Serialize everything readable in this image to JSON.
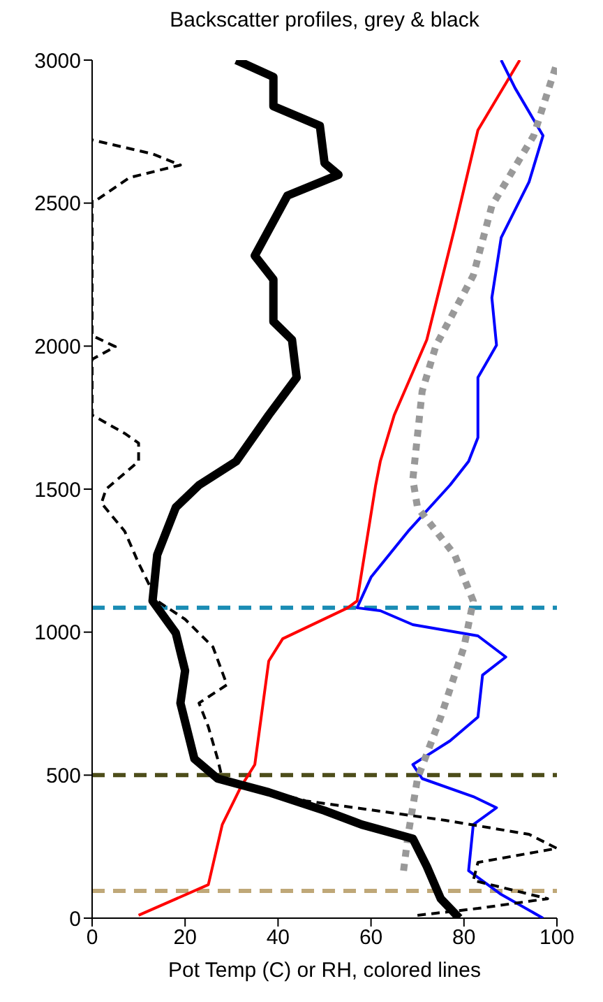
{
  "chart_data": {
    "type": "line",
    "title": "Backscatter profiles, grey & black",
    "xlabel": "Pot Temp (C) or RH, colored lines",
    "xlim": [
      0,
      100
    ],
    "xticks": [
      0,
      20,
      40,
      60,
      80,
      100
    ],
    "ylim": [
      0,
      3000
    ],
    "yticks": [
      0,
      500,
      1000,
      1500,
      2000,
      2500,
      3000
    ],
    "grid": false,
    "legend": false,
    "marker": "none",
    "series": [
      {
        "color": "#ff0000",
        "line_style": "solid",
        "x": [
          10,
          25,
          28,
          32,
          35,
          38,
          41,
          55,
          57,
          61,
          62,
          65,
          72,
          78,
          83,
          92
        ],
        "values": [
          10,
          117,
          327,
          459,
          537,
          899,
          977,
          1085,
          1109,
          1514,
          1597,
          1759,
          2022,
          2413,
          2755,
          3000
        ]
      },
      {
        "color": "#0000ff",
        "line_style": "solid",
        "x": [
          97,
          88,
          81,
          82,
          87,
          82,
          71,
          69,
          77,
          83,
          84,
          89,
          83,
          69,
          62,
          57,
          60,
          68,
          77,
          81,
          83,
          83,
          87,
          86,
          88,
          94,
          97,
          91,
          88
        ],
        "values": [
          0,
          83,
          166,
          327,
          386,
          425,
          488,
          537,
          620,
          703,
          850,
          913,
          987,
          1026,
          1075,
          1085,
          1192,
          1353,
          1514,
          1597,
          1680,
          1890,
          2003,
          2169,
          2379,
          2574,
          2736,
          2902,
          3000
        ]
      },
      {
        "color": "#999999",
        "line_style": "dotted",
        "x": [
          67,
          68,
          70,
          75,
          80,
          82,
          78,
          70,
          69,
          71,
          74,
          82,
          86,
          95,
          100
        ],
        "values": [
          166,
          293,
          488,
          703,
          948,
          1109,
          1270,
          1436,
          1534,
          1842,
          2003,
          2247,
          2491,
          2736,
          2990
        ]
      },
      {
        "color": "#000000",
        "line_style": "solid",
        "x": [
          79,
          75,
          72,
          69,
          58,
          50,
          38,
          27,
          22,
          19,
          20,
          18,
          13,
          14,
          18,
          23,
          31,
          38,
          44,
          43,
          39,
          39,
          35,
          42,
          53,
          50,
          49,
          39,
          39,
          31
        ],
        "values": [
          0,
          68,
          181,
          278,
          327,
          376,
          440,
          488,
          557,
          752,
          865,
          997,
          1109,
          1270,
          1436,
          1514,
          1597,
          1759,
          1890,
          2022,
          2086,
          2233,
          2316,
          2526,
          2599,
          2640,
          2770,
          2839,
          2941,
          3000
        ]
      },
      {
        "color": "#000000",
        "line_style": "dashed",
        "x": [
          70,
          83,
          98,
          82,
          83,
          100,
          94,
          76,
          46,
          28,
          27,
          25,
          23,
          29,
          26,
          20,
          14,
          10,
          7,
          2,
          3,
          10,
          10,
          7,
          0,
          0,
          5,
          0,
          0,
          0,
          1,
          8,
          19,
          13,
          0
        ],
        "values": [
          10,
          34,
          68,
          132,
          195,
          244,
          293,
          342,
          410,
          488,
          557,
          669,
          752,
          816,
          948,
          1045,
          1109,
          1241,
          1353,
          1451,
          1500,
          1597,
          1661,
          1695,
          1759,
          1954,
          1998,
          2037,
          2413,
          2511,
          2511,
          2589,
          2633,
          2672,
          2721
        ]
      }
    ],
    "ref_lines": [
      {
        "axis": "y",
        "value": 1085,
        "color": "#1a8cb4",
        "line_style": "dashed"
      },
      {
        "axis": "y",
        "value": 500,
        "color": "#4d4d1a",
        "line_style": "dashed"
      },
      {
        "axis": "y",
        "value": 95,
        "color": "#bfa878",
        "line_style": "dashed"
      }
    ]
  }
}
